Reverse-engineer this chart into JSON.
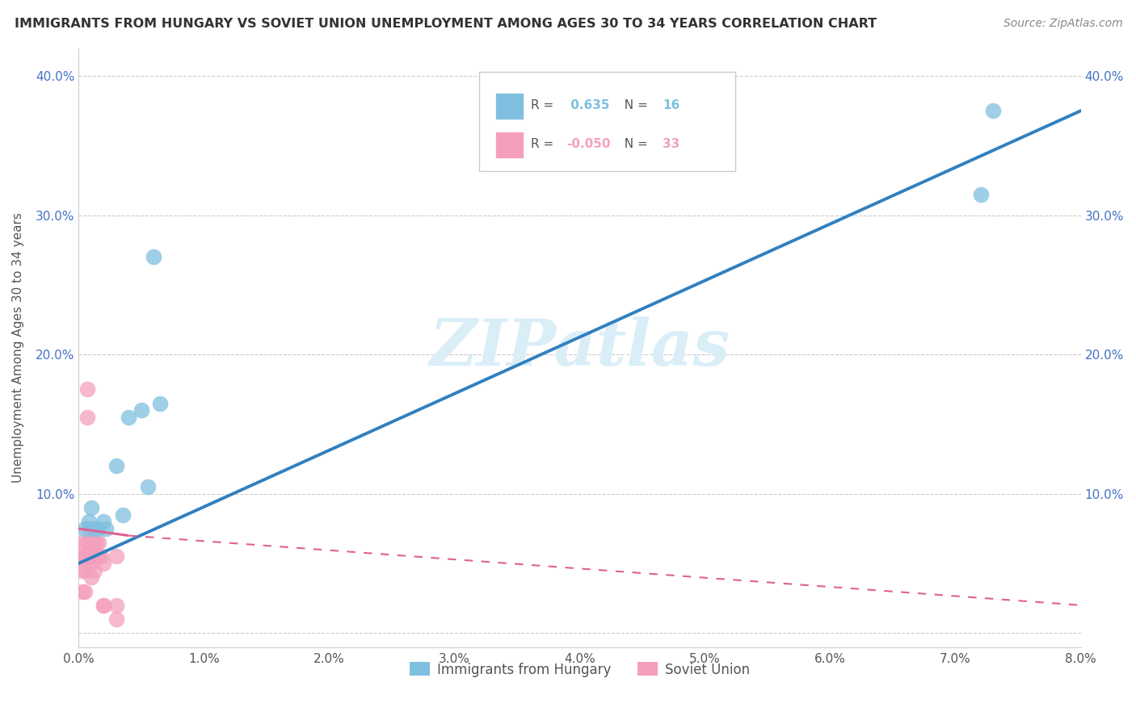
{
  "title": "IMMIGRANTS FROM HUNGARY VS SOVIET UNION UNEMPLOYMENT AMONG AGES 30 TO 34 YEARS CORRELATION CHART",
  "source": "Source: ZipAtlas.com",
  "ylabel": "Unemployment Among Ages 30 to 34 years",
  "xlim": [
    0.0,
    0.08
  ],
  "ylim": [
    -0.01,
    0.42
  ],
  "xticks": [
    0.0,
    0.01,
    0.02,
    0.03,
    0.04,
    0.05,
    0.06,
    0.07,
    0.08
  ],
  "xticklabels": [
    "0.0%",
    "1.0%",
    "2.0%",
    "3.0%",
    "4.0%",
    "5.0%",
    "6.0%",
    "7.0%",
    "8.0%"
  ],
  "yticks": [
    0.0,
    0.1,
    0.2,
    0.3,
    0.4
  ],
  "yticklabels": [
    "",
    "10.0%",
    "20.0%",
    "30.0%",
    "40.0%"
  ],
  "hungary_color": "#7fbfdf",
  "soviet_color": "#f4a0bc",
  "hungary_R": "0.635",
  "hungary_N": "16",
  "soviet_R": "-0.050",
  "soviet_N": "33",
  "hungary_trendline_color": "#3080c0",
  "soviet_trendline_color": "#e06090",
  "watermark_text": "ZIPatlas",
  "watermark_color": "#daeef8",
  "hungary_x": [
    0.0005,
    0.0008,
    0.001,
    0.0012,
    0.0015,
    0.002,
    0.0022,
    0.003,
    0.0035,
    0.004,
    0.005,
    0.006,
    0.0065,
    0.0055,
    0.072,
    0.073
  ],
  "hungary_y": [
    0.075,
    0.08,
    0.09,
    0.075,
    0.075,
    0.08,
    0.075,
    0.12,
    0.085,
    0.155,
    0.16,
    0.27,
    0.165,
    0.105,
    0.315,
    0.375
  ],
  "soviet_x": [
    0.0002,
    0.0002,
    0.0003,
    0.0003,
    0.0003,
    0.0005,
    0.0005,
    0.0005,
    0.0006,
    0.0006,
    0.0007,
    0.0007,
    0.0008,
    0.0008,
    0.0008,
    0.001,
    0.001,
    0.001,
    0.001,
    0.0012,
    0.0012,
    0.0013,
    0.0013,
    0.0014,
    0.0015,
    0.0016,
    0.0018,
    0.002,
    0.002,
    0.002,
    0.003,
    0.003,
    0.003
  ],
  "soviet_y": [
    0.065,
    0.055,
    0.055,
    0.045,
    0.03,
    0.055,
    0.045,
    0.03,
    0.065,
    0.055,
    0.175,
    0.155,
    0.075,
    0.065,
    0.055,
    0.06,
    0.055,
    0.05,
    0.04,
    0.065,
    0.055,
    0.065,
    0.045,
    0.065,
    0.055,
    0.065,
    0.055,
    0.02,
    0.05,
    0.02,
    0.055,
    0.02,
    0.01
  ],
  "legend_hungary_label": "Immigrants from Hungary",
  "legend_soviet_label": "Soviet Union"
}
